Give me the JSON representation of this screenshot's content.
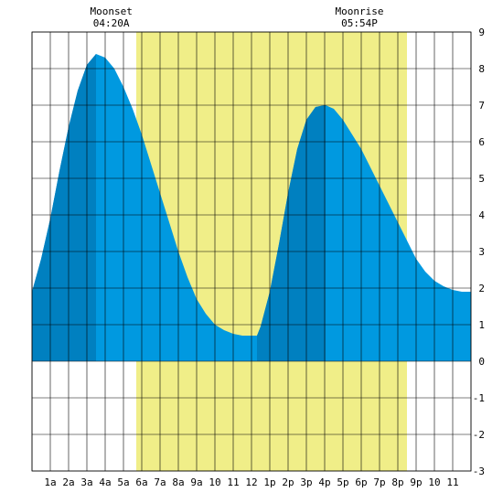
{
  "header": {
    "moonset": {
      "label": "Moonset",
      "time": "04:20A"
    },
    "moonrise": {
      "label": "Moonrise",
      "time": "05:54P"
    }
  },
  "chart_data": {
    "type": "area",
    "title": "",
    "xlabel": "",
    "ylabel": "",
    "x_unit": "hour of day",
    "xlim": [
      0,
      24
    ],
    "ylim": [
      -3,
      9
    ],
    "grid": true,
    "x_tick_labels": [
      "1a",
      "2a",
      "3a",
      "4a",
      "5a",
      "6a",
      "7a",
      "8a",
      "9a",
      "10",
      "11",
      "12",
      "1p",
      "2p",
      "3p",
      "4p",
      "5p",
      "6p",
      "7p",
      "8p",
      "9p",
      "10",
      "11"
    ],
    "y_tick_labels": [
      "-3",
      "-2",
      "-1",
      "0",
      "1",
      "2",
      "3",
      "4",
      "5",
      "6",
      "7",
      "8",
      "9"
    ],
    "daylight_band": [
      5.7,
      20.5
    ],
    "events": [
      {
        "name": "moonset",
        "time": "04:20A"
      },
      {
        "name": "moonrise",
        "time": "05:54P"
      }
    ],
    "tide_extrema": [
      {
        "type": "high",
        "time": 3.5,
        "value": 8.4
      },
      {
        "type": "low",
        "time": 12.3,
        "value": 0.7
      },
      {
        "type": "high",
        "time": 16.05,
        "value": 7.0
      },
      {
        "type": "low",
        "time": 24.0,
        "value": 1.9
      }
    ],
    "series": [
      {
        "x": [
          0,
          0.5,
          1,
          1.5,
          2,
          2.5,
          3,
          3.5,
          4,
          4.5,
          5,
          5.5,
          6,
          6.5,
          7,
          7.5,
          8,
          8.5,
          9,
          9.5,
          10,
          10.5,
          11,
          11.5,
          12,
          12.3,
          12.5,
          13,
          13.5,
          14,
          14.5,
          15,
          15.5,
          16,
          16.05,
          16.5,
          17,
          17.5,
          18,
          18.5,
          19,
          19.5,
          20,
          20.5,
          21,
          21.5,
          22,
          22.5,
          23,
          23.5,
          24
        ],
        "values": [
          1.9,
          2.8,
          3.9,
          5.2,
          6.4,
          7.4,
          8.1,
          8.4,
          8.3,
          8.0,
          7.5,
          6.9,
          6.2,
          5.4,
          4.6,
          3.8,
          3.0,
          2.3,
          1.7,
          1.3,
          1.0,
          0.85,
          0.75,
          0.7,
          0.7,
          0.7,
          0.95,
          1.9,
          3.2,
          4.6,
          5.8,
          6.6,
          6.95,
          7.0,
          7.0,
          6.9,
          6.6,
          6.2,
          5.8,
          5.3,
          4.8,
          4.3,
          3.8,
          3.3,
          2.8,
          2.45,
          2.2,
          2.05,
          1.95,
          1.9,
          1.9
        ]
      }
    ],
    "colors": {
      "water": "#0099e0",
      "water_shaded": "#0080c0",
      "daylight": "#f0ee88",
      "grid": "#000000",
      "background": "#ffffff"
    },
    "shaded_ranges": [
      [
        0,
        3.5
      ],
      [
        12.3,
        16.05
      ]
    ]
  }
}
